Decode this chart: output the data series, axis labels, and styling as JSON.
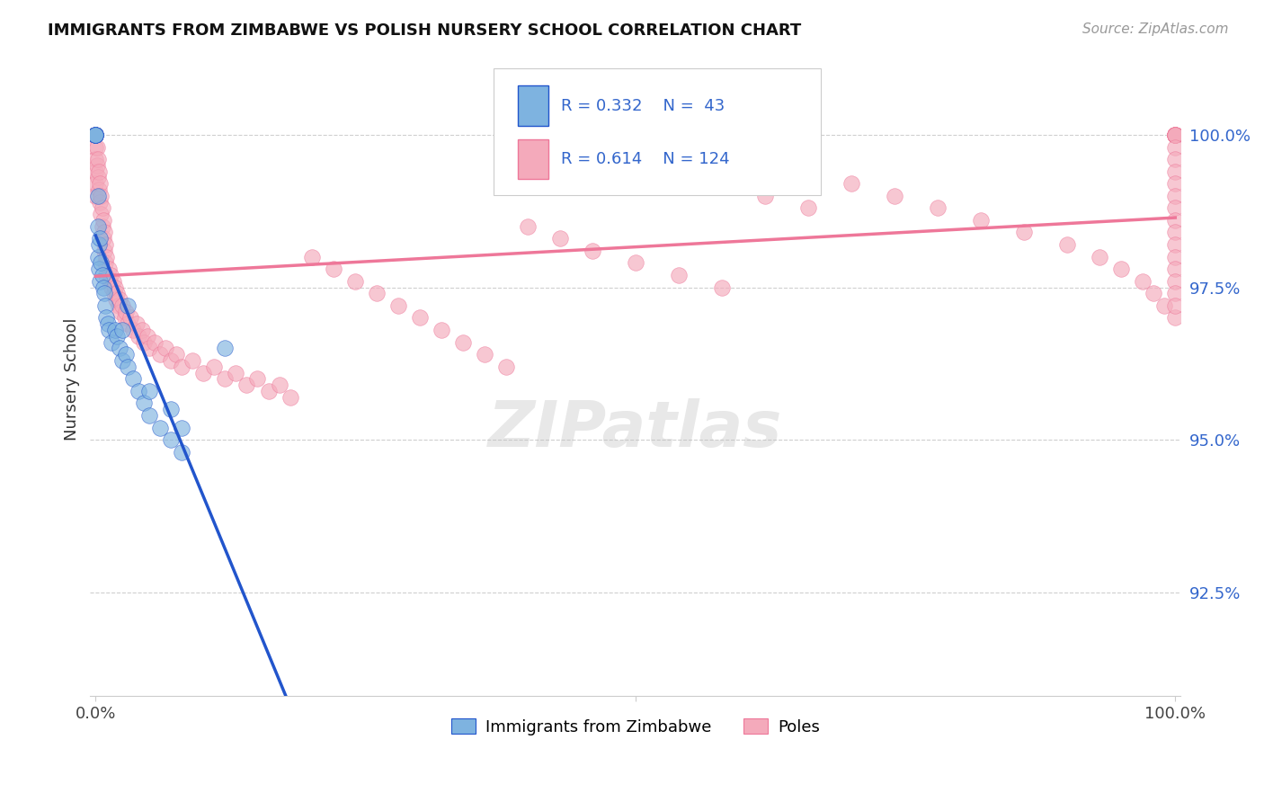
{
  "title": "IMMIGRANTS FROM ZIMBABWE VS POLISH NURSERY SCHOOL CORRELATION CHART",
  "source": "Source: ZipAtlas.com",
  "ylabel": "Nursery School",
  "ytick_labels": [
    "100.0%",
    "97.5%",
    "95.0%",
    "92.5%"
  ],
  "ytick_values": [
    1.0,
    0.975,
    0.95,
    0.925
  ],
  "legend_label1": "Immigrants from Zimbabwe",
  "legend_label2": "Poles",
  "R1": 0.332,
  "N1": 43,
  "R2": 0.614,
  "N2": 124,
  "color_blue": "#7EB3E0",
  "color_pink": "#F4AABB",
  "color_blue_line": "#2255CC",
  "color_pink_line": "#EE7799",
  "color_text_blue": "#3366CC",
  "background_color": "#FFFFFF",
  "grid_color": "#BBBBBB",
  "xlim": [
    -0.005,
    1.005
  ],
  "ylim": [
    0.908,
    1.012
  ],
  "blue_x": [
    0.0,
    0.0,
    0.0,
    0.0,
    0.0,
    0.0,
    0.0,
    0.0,
    0.002,
    0.002,
    0.002,
    0.003,
    0.003,
    0.004,
    0.004,
    0.005,
    0.006,
    0.007,
    0.008,
    0.009,
    0.01,
    0.011,
    0.012,
    0.015,
    0.018,
    0.02,
    0.022,
    0.025,
    0.028,
    0.03,
    0.035,
    0.04,
    0.045,
    0.05,
    0.06,
    0.07,
    0.08,
    0.03,
    0.025,
    0.12,
    0.05,
    0.07,
    0.08
  ],
  "blue_y": [
    1.0,
    1.0,
    1.0,
    1.0,
    1.0,
    1.0,
    1.0,
    1.0,
    0.99,
    0.985,
    0.98,
    0.982,
    0.978,
    0.983,
    0.976,
    0.979,
    0.977,
    0.975,
    0.974,
    0.972,
    0.97,
    0.969,
    0.968,
    0.966,
    0.968,
    0.967,
    0.965,
    0.963,
    0.964,
    0.962,
    0.96,
    0.958,
    0.956,
    0.954,
    0.952,
    0.95,
    0.948,
    0.972,
    0.968,
    0.965,
    0.958,
    0.955,
    0.952
  ],
  "pink_x": [
    0.0,
    0.0,
    0.0,
    0.0,
    0.0,
    0.0,
    0.0,
    0.0,
    0.0,
    0.0,
    0.001,
    0.001,
    0.002,
    0.002,
    0.003,
    0.003,
    0.004,
    0.004,
    0.005,
    0.005,
    0.006,
    0.006,
    0.007,
    0.007,
    0.008,
    0.008,
    0.009,
    0.009,
    0.01,
    0.01,
    0.012,
    0.013,
    0.014,
    0.015,
    0.016,
    0.017,
    0.018,
    0.019,
    0.02,
    0.021,
    0.022,
    0.023,
    0.025,
    0.027,
    0.028,
    0.03,
    0.032,
    0.035,
    0.038,
    0.04,
    0.043,
    0.045,
    0.048,
    0.05,
    0.055,
    0.06,
    0.065,
    0.07,
    0.075,
    0.08,
    0.09,
    0.1,
    0.11,
    0.12,
    0.13,
    0.14,
    0.15,
    0.16,
    0.17,
    0.18,
    0.2,
    0.22,
    0.24,
    0.26,
    0.28,
    0.3,
    0.32,
    0.34,
    0.36,
    0.38,
    0.4,
    0.43,
    0.46,
    0.5,
    0.54,
    0.58,
    0.62,
    0.66,
    0.7,
    0.74,
    0.78,
    0.82,
    0.86,
    0.9,
    0.93,
    0.95,
    0.97,
    0.98,
    0.99,
    1.0,
    1.0,
    1.0,
    1.0,
    1.0,
    1.0,
    1.0,
    1.0,
    1.0,
    1.0,
    1.0,
    1.0,
    1.0,
    1.0,
    1.0,
    1.0,
    1.0,
    1.0,
    1.0,
    1.0,
    1.0,
    1.0,
    1.0,
    1.0,
    1.0
  ],
  "pink_y": [
    1.0,
    1.0,
    1.0,
    1.0,
    1.0,
    0.998,
    0.996,
    0.994,
    0.992,
    0.99,
    0.998,
    0.995,
    0.996,
    0.993,
    0.994,
    0.991,
    0.992,
    0.989,
    0.99,
    0.987,
    0.988,
    0.985,
    0.986,
    0.983,
    0.984,
    0.981,
    0.982,
    0.979,
    0.98,
    0.977,
    0.978,
    0.976,
    0.977,
    0.975,
    0.976,
    0.974,
    0.975,
    0.973,
    0.974,
    0.972,
    0.973,
    0.971,
    0.972,
    0.97,
    0.971,
    0.969,
    0.97,
    0.968,
    0.969,
    0.967,
    0.968,
    0.966,
    0.967,
    0.965,
    0.966,
    0.964,
    0.965,
    0.963,
    0.964,
    0.962,
    0.963,
    0.961,
    0.962,
    0.96,
    0.961,
    0.959,
    0.96,
    0.958,
    0.959,
    0.957,
    0.98,
    0.978,
    0.976,
    0.974,
    0.972,
    0.97,
    0.968,
    0.966,
    0.964,
    0.962,
    0.985,
    0.983,
    0.981,
    0.979,
    0.977,
    0.975,
    0.99,
    0.988,
    0.992,
    0.99,
    0.988,
    0.986,
    0.984,
    0.982,
    0.98,
    0.978,
    0.976,
    0.974,
    0.972,
    0.97,
    1.0,
    1.0,
    1.0,
    1.0,
    1.0,
    1.0,
    1.0,
    1.0,
    1.0,
    1.0,
    0.998,
    0.996,
    0.994,
    0.992,
    0.99,
    0.988,
    0.986,
    0.984,
    0.982,
    0.98,
    0.978,
    0.976,
    0.974,
    0.972
  ]
}
